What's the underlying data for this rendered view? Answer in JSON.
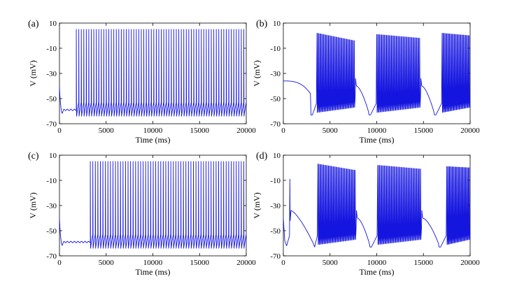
{
  "figure": {
    "line_color": "#1515e0"
  },
  "chart_data": [
    {
      "type": "line",
      "panel_label": "(a)",
      "xlabel": "Time (ms)",
      "ylabel": "V (mV)",
      "xlim": [
        0,
        20000
      ],
      "ylim": [
        -70,
        10
      ],
      "xticks": [
        0,
        5000,
        10000,
        15000,
        20000
      ],
      "yticks": [
        10,
        -10,
        -30,
        -50,
        -70
      ],
      "description": "Tonic spiking after ~1800 ms transient",
      "series": [
        {
          "name": "V",
          "pattern": "tonic",
          "rest_start": -40,
          "rest_level": -59,
          "onset_ms": 1800,
          "spike_peak": 5,
          "spike_trough": -64,
          "spike_count": 68
        }
      ]
    },
    {
      "type": "line",
      "panel_label": "(b)",
      "xlabel": "Time (ms)",
      "ylabel": "V (mV)",
      "xlim": [
        0,
        20000
      ],
      "ylim": [
        -70,
        10
      ],
      "xticks": [
        0,
        5000,
        10000,
        15000,
        20000
      ],
      "yticks": [
        10,
        -10,
        -30,
        -50,
        -70
      ],
      "description": "Bursting with quiescent ramps between bursts",
      "series": [
        {
          "name": "V",
          "pattern": "bursting",
          "initial_level": -36,
          "bursts": [
            {
              "start": 3600,
              "end": 7700,
              "spikes": 40,
              "peak_start": 2,
              "peak_end": -4,
              "trough": -61
            },
            {
              "start": 10000,
              "end": 14700,
              "spikes": 45,
              "peak_start": 1,
              "peak_end": -2,
              "trough": -61
            },
            {
              "start": 17000,
              "end": 20000,
              "spikes": 30,
              "peak_start": 2,
              "peak_end": 0,
              "trough": -61
            }
          ],
          "interburst_low": -63,
          "interburst_high": -37
        }
      ]
    },
    {
      "type": "line",
      "panel_label": "(c)",
      "xlabel": "Time (ms)",
      "ylabel": "V (mV)",
      "xlim": [
        0,
        20000
      ],
      "ylim": [
        -70,
        10
      ],
      "xticks": [
        0,
        5000,
        10000,
        15000,
        20000
      ],
      "yticks": [
        10,
        -10,
        -30,
        -50,
        -70
      ],
      "description": "Tonic spiking after ~3300 ms transient",
      "series": [
        {
          "name": "V",
          "pattern": "tonic",
          "rest_start": -40,
          "rest_level": -59,
          "onset_ms": 3300,
          "spike_peak": 5,
          "spike_trough": -64,
          "spike_count": 62
        }
      ]
    },
    {
      "type": "line",
      "panel_label": "(d)",
      "xlabel": "Time (ms)",
      "ylabel": "V (mV)",
      "xlim": [
        0,
        20000
      ],
      "ylim": [
        -70,
        10
      ],
      "xticks": [
        0,
        5000,
        10000,
        15000,
        20000
      ],
      "yticks": [
        10,
        -10,
        -30,
        -50,
        -70
      ],
      "description": "Bursting with an initial isolated spike near 700 ms",
      "series": [
        {
          "name": "V",
          "pattern": "bursting",
          "initial_level": -40,
          "initial_spike": {
            "t": 700,
            "peak": -9
          },
          "bursts": [
            {
              "start": 3700,
              "end": 7800,
              "spikes": 40,
              "peak_start": 3,
              "peak_end": -2,
              "trough": -61
            },
            {
              "start": 10100,
              "end": 14800,
              "spikes": 45,
              "peak_start": 2,
              "peak_end": -1,
              "trough": -61
            },
            {
              "start": 17500,
              "end": 20000,
              "spikes": 26,
              "peak_start": 1,
              "peak_end": 0,
              "trough": -61
            }
          ],
          "interburst_low": -63,
          "interburst_high": -37
        }
      ]
    }
  ]
}
